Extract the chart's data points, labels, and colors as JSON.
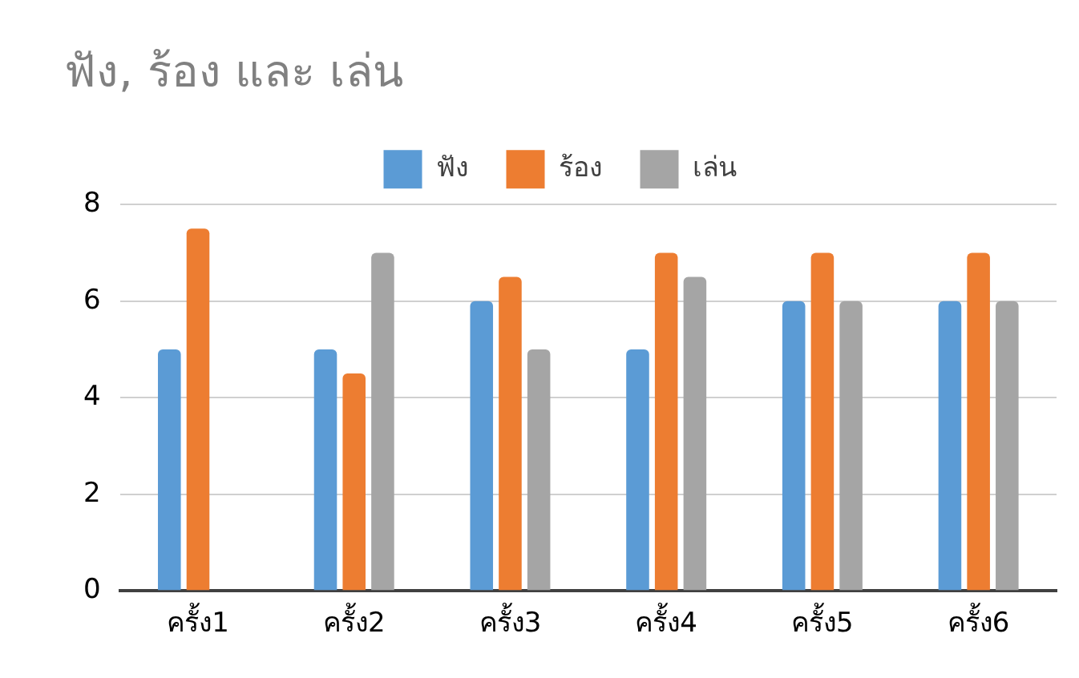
{
  "chart_data": {
    "type": "bar",
    "title": "ฟัง, ร้อง และ เล่น",
    "categories": [
      "ครั้ง1",
      "ครั้ง2",
      "ครั้ง3",
      "ครั้ง4",
      "ครั้ง5",
      "ครั้ง6"
    ],
    "series": [
      {
        "name": "ฟัง",
        "color": "#5b9bd5",
        "values": [
          5,
          5,
          6,
          5,
          6,
          6
        ]
      },
      {
        "name": "ร้อง",
        "color": "#ed7d31",
        "values": [
          7.5,
          4.5,
          6.5,
          7,
          7,
          7
        ]
      },
      {
        "name": "เล่น",
        "color": "#a5a5a5",
        "values": [
          null,
          7,
          5,
          6.5,
          6,
          6
        ]
      }
    ],
    "ylim": [
      0,
      8
    ],
    "yticks": [
      0,
      2,
      4,
      6,
      8
    ],
    "grid": "y",
    "legend": "top"
  }
}
